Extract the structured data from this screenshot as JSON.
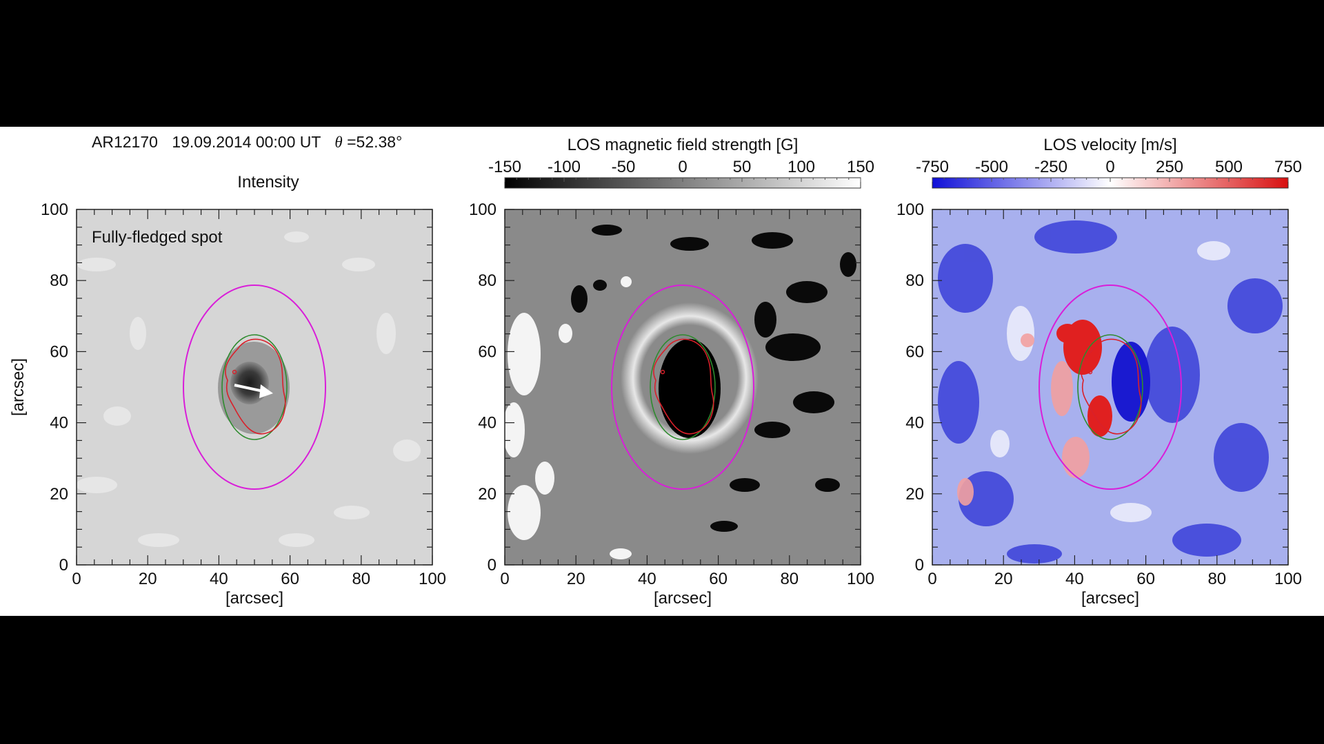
{
  "header": {
    "region": "AR12170",
    "datetime": "19.09.2014 00:00 UT",
    "theta_symbol": "θ",
    "theta_value": "=52.38°"
  },
  "panels": [
    {
      "id": "intensity",
      "title": "Intensity",
      "annotation": "Fully-fledged spot",
      "xlabel": "[arcsec]",
      "ylabel": "[arcsec]",
      "xticks": [
        "0",
        "20",
        "40",
        "60",
        "80",
        "100"
      ],
      "yticks": [
        "0",
        "20",
        "40",
        "60",
        "80",
        "100"
      ],
      "arrow_icon": "white-arrow-icon"
    },
    {
      "id": "los-magnetic-field",
      "colorbar_title": "LOS magnetic field strength [G]",
      "colorbar_ticks": [
        "-150",
        "-100",
        "-50",
        "0",
        "50",
        "100",
        "150"
      ],
      "xlabel": "[arcsec]",
      "xticks": [
        "0",
        "20",
        "40",
        "60",
        "80",
        "100"
      ],
      "yticks": [
        "0",
        "20",
        "40",
        "60",
        "80",
        "100"
      ]
    },
    {
      "id": "los-velocity",
      "colorbar_title": "LOS velocity [m/s]",
      "colorbar_ticks": [
        "-750",
        "-500",
        "-250",
        "0",
        "250",
        "500",
        "750"
      ],
      "xlabel": "[arcsec]",
      "xticks": [
        "0",
        "20",
        "40",
        "60",
        "80",
        "100"
      ],
      "yticks": [
        "0",
        "20",
        "40",
        "60",
        "80",
        "100"
      ]
    }
  ],
  "contour_colors": {
    "outer_ellipse": "#d91ed9",
    "umbra_contour": "#d9202a",
    "penumbra_contour": "#2e8b2e"
  },
  "colormaps": {
    "magnetic": [
      "#000000",
      "#ffffff"
    ],
    "velocity": [
      "#1010d8",
      "#ffffff",
      "#d81010"
    ]
  }
}
